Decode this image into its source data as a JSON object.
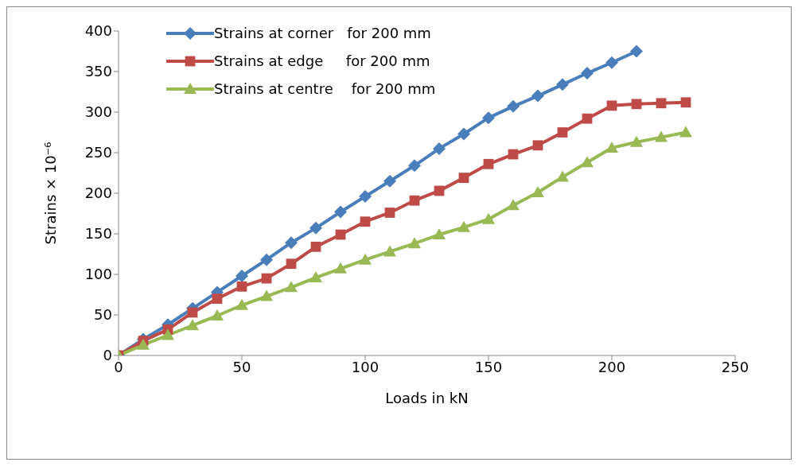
{
  "chart_data": {
    "type": "line",
    "xlabel": "Loads in kN",
    "ylabel": "Strains × 10⁻⁶",
    "xlim": [
      0,
      250
    ],
    "xticks": [
      0,
      50,
      100,
      150,
      200,
      250
    ],
    "ylim": [
      0,
      400
    ],
    "yticks": [
      0,
      50,
      100,
      150,
      200,
      250,
      300,
      350,
      400
    ],
    "grid": false,
    "legend": "top left",
    "line_style": "solid",
    "series": [
      {
        "name": "Strains at corner   for 200 mm",
        "color": "#4a7ebb",
        "marker": "diamond",
        "x": [
          0,
          10,
          20,
          30,
          40,
          50,
          60,
          70,
          80,
          90,
          100,
          110,
          120,
          130,
          140,
          150,
          160,
          170,
          180,
          190,
          200,
          210
        ],
        "values": [
          0,
          20,
          38,
          58,
          78,
          98,
          118,
          139,
          157,
          177,
          196,
          215,
          234,
          255,
          273,
          293,
          307,
          320,
          334,
          348,
          361,
          375
        ]
      },
      {
        "name": "Strains at edge     for 200 mm",
        "color": "#be4b48",
        "marker": "square",
        "x": [
          0,
          10,
          20,
          30,
          40,
          50,
          60,
          70,
          80,
          90,
          100,
          110,
          120,
          130,
          140,
          150,
          160,
          170,
          180,
          190,
          200,
          210,
          220,
          230
        ],
        "values": [
          0,
          18,
          32,
          53,
          70,
          85,
          95,
          113,
          134,
          149,
          165,
          176,
          191,
          203,
          219,
          236,
          248,
          259,
          275,
          292,
          308,
          310,
          311,
          312
        ]
      },
      {
        "name": "Strains at centre    for 200 mm",
        "color": "#98b954",
        "marker": "triangle",
        "x": [
          0,
          10,
          20,
          30,
          40,
          50,
          60,
          70,
          80,
          90,
          100,
          110,
          120,
          130,
          140,
          150,
          160,
          170,
          180,
          190,
          200,
          210,
          220,
          230
        ],
        "values": [
          0,
          13,
          25,
          37,
          49,
          62,
          73,
          84,
          96,
          107,
          118,
          128,
          138,
          149,
          158,
          168,
          185,
          201,
          220,
          238,
          256,
          263,
          269,
          275
        ]
      }
    ]
  }
}
